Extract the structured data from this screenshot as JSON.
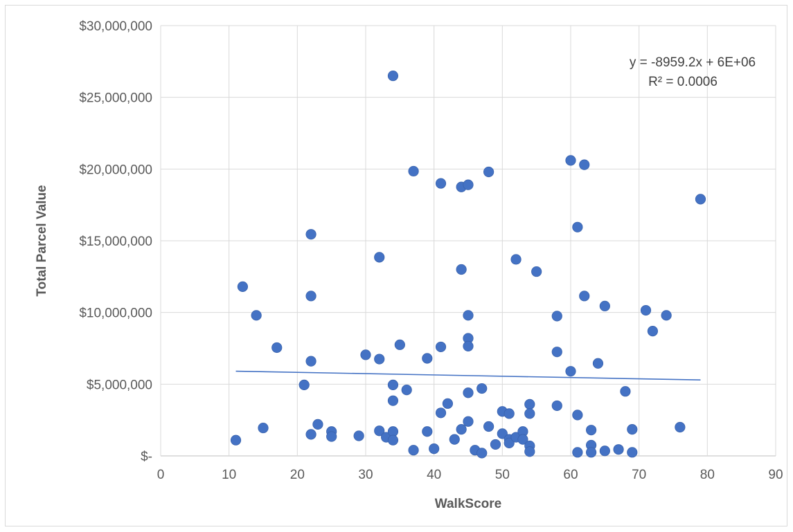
{
  "chart_data": {
    "type": "scatter",
    "xlabel": "WalkScore",
    "ylabel": "Total Parcel Value",
    "xlim": [
      0,
      90
    ],
    "ylim": [
      0,
      30000000
    ],
    "x_ticks": [
      "0",
      "10",
      "20",
      "30",
      "40",
      "50",
      "60",
      "70",
      "80",
      "90"
    ],
    "y_ticks": [
      "$-",
      "$5,000,000",
      "$10,000,000",
      "$15,000,000",
      "$20,000,000",
      "$25,000,000",
      "$30,000,000"
    ],
    "grid": true,
    "marker_color": "#4472c4",
    "trendline": {
      "type": "linear",
      "slope": -8959.2,
      "intercept": 6000000,
      "x_range": [
        11,
        79
      ],
      "color": "#4472c4",
      "equation_label": "y = -8959.2x + 6E+06",
      "r2_label": "R² = 0.0006"
    },
    "points": [
      [
        11,
        1100000
      ],
      [
        12,
        11800000
      ],
      [
        14,
        9800000
      ],
      [
        15,
        1950000
      ],
      [
        17,
        7550000
      ],
      [
        21,
        4950000
      ],
      [
        22,
        15450000
      ],
      [
        22,
        11150000
      ],
      [
        22,
        6600000
      ],
      [
        22,
        1500000
      ],
      [
        23,
        2200000
      ],
      [
        25,
        1700000
      ],
      [
        25,
        1350000
      ],
      [
        29,
        1400000
      ],
      [
        30,
        7050000
      ],
      [
        32,
        13850000
      ],
      [
        32,
        6750000
      ],
      [
        32,
        1750000
      ],
      [
        33,
        1300000
      ],
      [
        34,
        26500000
      ],
      [
        34,
        4950000
      ],
      [
        34,
        3850000
      ],
      [
        34,
        1700000
      ],
      [
        34,
        1100000
      ],
      [
        35,
        7750000
      ],
      [
        36,
        4600000
      ],
      [
        37,
        19850000
      ],
      [
        37,
        400000
      ],
      [
        39,
        6800000
      ],
      [
        39,
        1700000
      ],
      [
        40,
        500000
      ],
      [
        41,
        19000000
      ],
      [
        41,
        7600000
      ],
      [
        41,
        3000000
      ],
      [
        42,
        3650000
      ],
      [
        43,
        1150000
      ],
      [
        44,
        18750000
      ],
      [
        44,
        13000000
      ],
      [
        44,
        1850000
      ],
      [
        45,
        18900000
      ],
      [
        45,
        9800000
      ],
      [
        45,
        8200000
      ],
      [
        45,
        7650000
      ],
      [
        45,
        4400000
      ],
      [
        45,
        2400000
      ],
      [
        46,
        400000
      ],
      [
        47,
        4700000
      ],
      [
        47,
        200000
      ],
      [
        48,
        19800000
      ],
      [
        48,
        2050000
      ],
      [
        49,
        800000
      ],
      [
        50,
        3100000
      ],
      [
        50,
        1550000
      ],
      [
        51,
        2950000
      ],
      [
        51,
        1150000
      ],
      [
        51,
        900000
      ],
      [
        52,
        13700000
      ],
      [
        52,
        1300000
      ],
      [
        53,
        1700000
      ],
      [
        53,
        1150000
      ],
      [
        54,
        3600000
      ],
      [
        54,
        2950000
      ],
      [
        54,
        700000
      ],
      [
        54,
        300000
      ],
      [
        55,
        12850000
      ],
      [
        58,
        9750000
      ],
      [
        58,
        7250000
      ],
      [
        58,
        3500000
      ],
      [
        60,
        20600000
      ],
      [
        60,
        5900000
      ],
      [
        61,
        15950000
      ],
      [
        61,
        2850000
      ],
      [
        61,
        250000
      ],
      [
        62,
        20300000
      ],
      [
        62,
        11150000
      ],
      [
        63,
        1800000
      ],
      [
        63,
        750000
      ],
      [
        63,
        250000
      ],
      [
        64,
        6450000
      ],
      [
        65,
        10450000
      ],
      [
        65,
        350000
      ],
      [
        67,
        450000
      ],
      [
        68,
        4500000
      ],
      [
        69,
        1850000
      ],
      [
        69,
        250000
      ],
      [
        71,
        10150000
      ],
      [
        72,
        8700000
      ],
      [
        74,
        9800000
      ],
      [
        76,
        2000000
      ],
      [
        79,
        17900000
      ]
    ]
  }
}
